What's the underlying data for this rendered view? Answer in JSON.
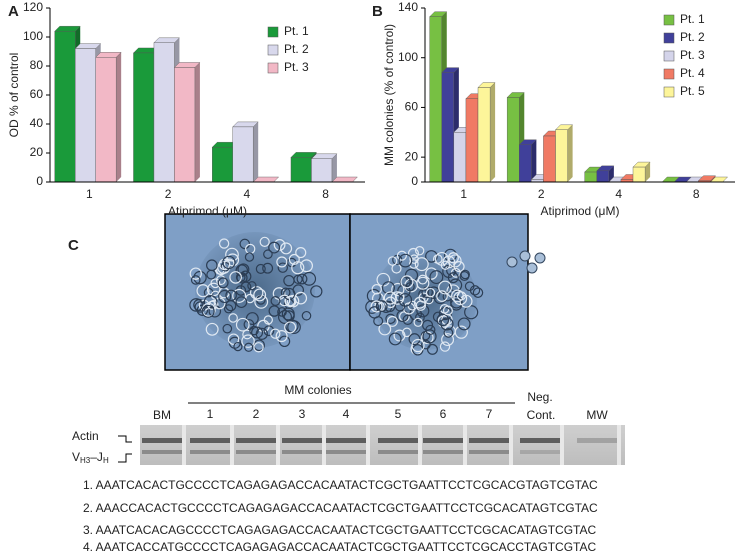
{
  "chart_data": [
    {
      "type": "bar",
      "label": "A",
      "y_label": "OD % of control",
      "x_label": "Atiprimod (μM)",
      "categories": [
        "1",
        "2",
        "4",
        "8"
      ],
      "series": [
        {
          "name": "Pt. 1",
          "color": "#1a9a3a",
          "values": [
            104,
            89,
            24,
            17
          ]
        },
        {
          "name": "Pt. 2",
          "color": "#d8d8ec",
          "values": [
            92,
            96,
            38,
            16
          ]
        },
        {
          "name": "Pt. 3",
          "color": "#f2b8c6",
          "values": [
            86,
            79,
            0,
            0
          ]
        }
      ],
      "ylim": [
        0,
        120
      ],
      "yticks": [
        0,
        20,
        40,
        60,
        80,
        100,
        120
      ],
      "grid": false,
      "legend": "upper right"
    },
    {
      "type": "bar",
      "label": "B",
      "y_label": "MM colonies (% of control)",
      "x_label": "Atiprimod (μM)",
      "categories": [
        "1",
        "2",
        "4",
        "8"
      ],
      "series": [
        {
          "name": "Pt. 1",
          "color": "#77c043",
          "values": [
            133,
            68,
            8,
            0
          ]
        },
        {
          "name": "Pt. 2",
          "color": "#40409a",
          "values": [
            88,
            30,
            9,
            0
          ]
        },
        {
          "name": "Pt. 3",
          "color": "#d4d4ea",
          "values": [
            40,
            2,
            0,
            0
          ]
        },
        {
          "name": "Pt. 4",
          "color": "#f07a64",
          "values": [
            67,
            37,
            2,
            1
          ]
        },
        {
          "name": "Pt. 5",
          "color": "#fdf59a",
          "values": [
            76,
            42,
            12,
            0
          ]
        }
      ],
      "ylim": [
        0,
        140
      ],
      "yticks": [
        0,
        20,
        60,
        100,
        140
      ],
      "grid": false,
      "legend": "upper right"
    }
  ],
  "panel_c": {
    "label": "C",
    "group_label": "MM colonies",
    "lanes": [
      "BM",
      "1",
      "2",
      "3",
      "4",
      "5",
      "6",
      "7"
    ],
    "neg_control": [
      "Neg.",
      "Cont."
    ],
    "marker": "MW",
    "band_actin": "Actin",
    "band_v": [
      "V",
      "H3",
      "–J",
      "H"
    ],
    "sequences": [
      "1. AAATCACACTGCCCCTCAGAGAGACCACAATACTCGCTGAATTCCTCGCACGTAGTCGTAC",
      "2. AAACCACACTGCCCCTCAGAGAGACCACAATACTCGCTGAATTCCTCGCACATAGTCGTAC",
      "3. AAATCACACAGCCCCTCAGAGAGACCACAATACTCGCTGAATTCCTCGCACATAGTCGTAC",
      "4. AAATCACCATGCCCCTCAGAGAGACCACAATACTCGCTGAATTCCTCGCACCTAGTCGTAC"
    ]
  }
}
